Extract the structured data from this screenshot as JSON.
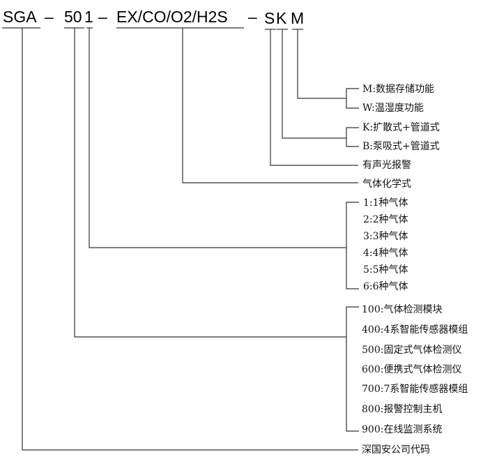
{
  "code": {
    "prefix": "SGA",
    "sep1": "–",
    "series": "50",
    "gas_count": "1",
    "sep2": "–",
    "gases": "EX/CO/O2/H2S",
    "sep3": "–",
    "alarm": "S",
    "mode": "K",
    "function": "M"
  },
  "function_options": [
    "M:数据存储功能",
    "W:温湿度功能"
  ],
  "mode_options": [
    "K:扩散式+管道式",
    "B:泵吸式+管道式"
  ],
  "alarm_label": "有声光报警",
  "gases_label": "气体化学式",
  "gas_count_options": [
    "1:1种气体",
    "2:2种气体",
    "3:3种气体",
    "4:4种气体",
    "5:5种气体",
    "6:6种气体"
  ],
  "series_options": [
    "100:气体检测模块",
    "400:4系智能传感器模组",
    "500:固定式气体检测仪",
    "600:便携式气体检测仪",
    "700:7系智能传感器模组",
    "800:报警控制主机",
    "900:在线监测系统"
  ],
  "prefix_label": "深国安公司代码"
}
